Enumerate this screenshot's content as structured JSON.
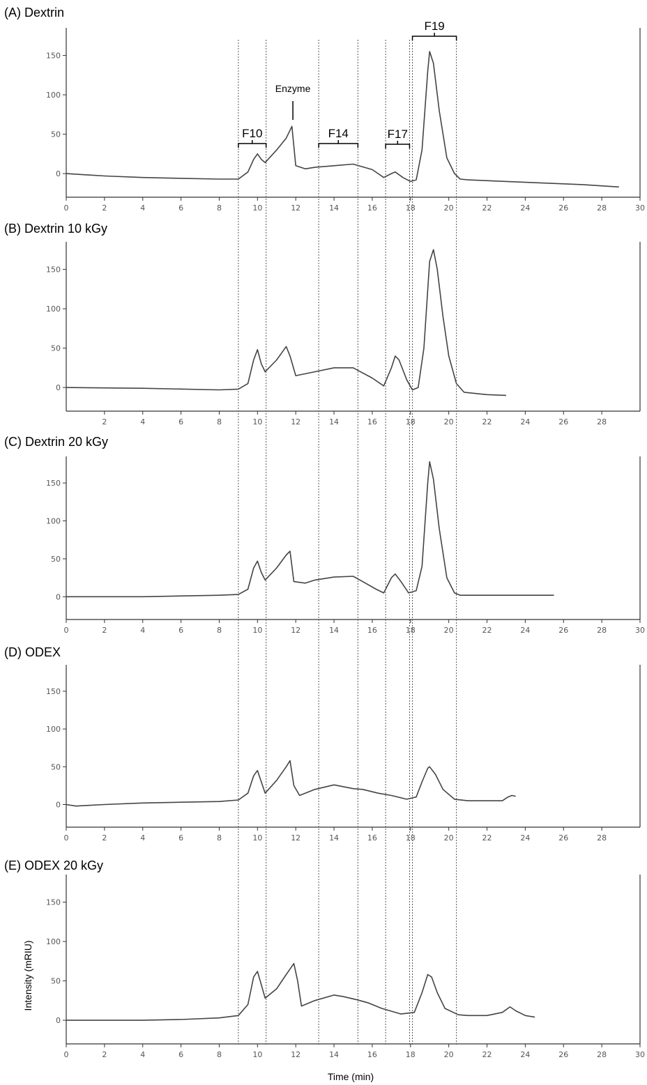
{
  "chart_data": {
    "type": "line",
    "xlabel": "Time (min)",
    "ylabel": "Intensity (mRIU)",
    "xlim": [
      0,
      30
    ],
    "ylim": [
      -30,
      185
    ],
    "y_ticks": [
      0,
      50,
      100,
      150
    ],
    "grid": false,
    "panels": [
      {
        "title": "(A) Dextrin",
        "x_ticks": [
          0,
          2,
          4,
          6,
          8,
          10,
          12,
          14,
          16,
          18,
          20,
          22,
          24,
          26,
          28,
          30
        ],
        "points": [
          [
            0,
            0
          ],
          [
            2,
            -3
          ],
          [
            4,
            -5
          ],
          [
            6,
            -6
          ],
          [
            8,
            -7
          ],
          [
            9,
            -7
          ],
          [
            9.5,
            2
          ],
          [
            9.8,
            18
          ],
          [
            10,
            25
          ],
          [
            10.2,
            18
          ],
          [
            10.4,
            14
          ],
          [
            11,
            30
          ],
          [
            11.5,
            45
          ],
          [
            11.8,
            60
          ],
          [
            12,
            10
          ],
          [
            12.5,
            6
          ],
          [
            13,
            8
          ],
          [
            14,
            10
          ],
          [
            15,
            12
          ],
          [
            16,
            5
          ],
          [
            16.6,
            -5
          ],
          [
            17,
            0
          ],
          [
            17.2,
            2
          ],
          [
            17.6,
            -5
          ],
          [
            18,
            -10
          ],
          [
            18.3,
            -8
          ],
          [
            18.6,
            30
          ],
          [
            18.9,
            130
          ],
          [
            19,
            155
          ],
          [
            19.2,
            140
          ],
          [
            19.5,
            80
          ],
          [
            19.9,
            20
          ],
          [
            20.3,
            0
          ],
          [
            20.6,
            -7
          ],
          [
            21,
            -8
          ],
          [
            23,
            -10
          ],
          [
            25,
            -12
          ],
          [
            27,
            -14
          ],
          [
            28.9,
            -17
          ]
        ]
      },
      {
        "title": "(B) Dextrin 10 kGy",
        "x_ticks": [
          2,
          4,
          6,
          8,
          10,
          12,
          14,
          16,
          18,
          20,
          22,
          24,
          26,
          28
        ],
        "points": [
          [
            0,
            0
          ],
          [
            4,
            -1
          ],
          [
            8,
            -3
          ],
          [
            9,
            -2
          ],
          [
            9.5,
            5
          ],
          [
            9.8,
            35
          ],
          [
            10,
            48
          ],
          [
            10.2,
            30
          ],
          [
            10.4,
            20
          ],
          [
            11,
            35
          ],
          [
            11.5,
            52
          ],
          [
            11.7,
            40
          ],
          [
            12,
            15
          ],
          [
            13,
            20
          ],
          [
            14,
            25
          ],
          [
            15,
            25
          ],
          [
            16,
            12
          ],
          [
            16.6,
            2
          ],
          [
            17,
            25
          ],
          [
            17.2,
            40
          ],
          [
            17.4,
            35
          ],
          [
            17.8,
            10
          ],
          [
            18.1,
            -3
          ],
          [
            18.4,
            0
          ],
          [
            18.7,
            50
          ],
          [
            19,
            160
          ],
          [
            19.2,
            175
          ],
          [
            19.4,
            150
          ],
          [
            19.7,
            90
          ],
          [
            20,
            40
          ],
          [
            20.4,
            5
          ],
          [
            20.8,
            -6
          ],
          [
            22,
            -9
          ],
          [
            23,
            -10
          ]
        ]
      },
      {
        "title": "(C) Dextrin 20 kGy",
        "x_ticks": [
          0,
          2,
          4,
          6,
          8,
          10,
          12,
          14,
          16,
          18,
          20,
          22,
          24,
          26,
          28,
          30
        ],
        "points": [
          [
            0,
            0
          ],
          [
            4,
            0
          ],
          [
            8,
            2
          ],
          [
            9,
            3
          ],
          [
            9.5,
            10
          ],
          [
            9.8,
            38
          ],
          [
            10,
            47
          ],
          [
            10.2,
            32
          ],
          [
            10.4,
            22
          ],
          [
            11,
            38
          ],
          [
            11.5,
            55
          ],
          [
            11.7,
            60
          ],
          [
            11.9,
            20
          ],
          [
            12.5,
            18
          ],
          [
            13,
            22
          ],
          [
            14,
            26
          ],
          [
            15,
            27
          ],
          [
            15.5,
            20
          ],
          [
            16.2,
            10
          ],
          [
            16.6,
            5
          ],
          [
            17,
            25
          ],
          [
            17.2,
            30
          ],
          [
            17.5,
            20
          ],
          [
            17.9,
            5
          ],
          [
            18.3,
            8
          ],
          [
            18.6,
            40
          ],
          [
            18.9,
            150
          ],
          [
            19,
            178
          ],
          [
            19.2,
            155
          ],
          [
            19.5,
            90
          ],
          [
            19.9,
            25
          ],
          [
            20.3,
            5
          ],
          [
            20.6,
            2
          ],
          [
            22,
            2
          ],
          [
            25.5,
            2
          ]
        ]
      },
      {
        "title": "(D) ODEX",
        "x_ticks": [
          0,
          2,
          4,
          6,
          8,
          10,
          12,
          14,
          16,
          18,
          20,
          22,
          24,
          26,
          28
        ],
        "points": [
          [
            0,
            0
          ],
          [
            0.5,
            -2
          ],
          [
            2,
            0
          ],
          [
            4,
            2
          ],
          [
            6,
            3
          ],
          [
            8,
            4
          ],
          [
            9,
            6
          ],
          [
            9.5,
            15
          ],
          [
            9.8,
            38
          ],
          [
            10,
            45
          ],
          [
            10.2,
            30
          ],
          [
            10.4,
            15
          ],
          [
            11,
            32
          ],
          [
            11.5,
            50
          ],
          [
            11.7,
            58
          ],
          [
            11.9,
            25
          ],
          [
            12.2,
            12
          ],
          [
            13,
            20
          ],
          [
            14,
            26
          ],
          [
            15,
            21
          ],
          [
            15.5,
            20
          ],
          [
            16.3,
            15
          ],
          [
            17,
            12
          ],
          [
            17.8,
            7
          ],
          [
            18.3,
            10
          ],
          [
            18.6,
            30
          ],
          [
            18.9,
            48
          ],
          [
            19,
            50
          ],
          [
            19.3,
            40
          ],
          [
            19.7,
            20
          ],
          [
            20.3,
            7
          ],
          [
            21,
            5
          ],
          [
            22,
            5
          ],
          [
            22.8,
            5
          ],
          [
            23.1,
            10
          ],
          [
            23.3,
            12
          ],
          [
            23.5,
            11
          ]
        ]
      },
      {
        "title": "(E) ODEX 20 kGy",
        "x_ticks": [
          0,
          2,
          4,
          6,
          8,
          10,
          12,
          14,
          16,
          18,
          20,
          22,
          24,
          26,
          28,
          30
        ],
        "points": [
          [
            0,
            0
          ],
          [
            2,
            0
          ],
          [
            4,
            0
          ],
          [
            6,
            1
          ],
          [
            8,
            3
          ],
          [
            9,
            6
          ],
          [
            9.5,
            20
          ],
          [
            9.8,
            55
          ],
          [
            10,
            62
          ],
          [
            10.2,
            45
          ],
          [
            10.4,
            28
          ],
          [
            11,
            40
          ],
          [
            11.5,
            58
          ],
          [
            11.9,
            72
          ],
          [
            12.1,
            50
          ],
          [
            12.3,
            18
          ],
          [
            13,
            25
          ],
          [
            14,
            32
          ],
          [
            14.5,
            30
          ],
          [
            15.2,
            26
          ],
          [
            15.8,
            22
          ],
          [
            16.5,
            15
          ],
          [
            17.5,
            8
          ],
          [
            18.2,
            10
          ],
          [
            18.6,
            35
          ],
          [
            18.9,
            58
          ],
          [
            19.1,
            55
          ],
          [
            19.4,
            35
          ],
          [
            19.8,
            15
          ],
          [
            20.5,
            7
          ],
          [
            21,
            6
          ],
          [
            22,
            6
          ],
          [
            22.8,
            10
          ],
          [
            23.2,
            17
          ],
          [
            23.5,
            12
          ],
          [
            24,
            6
          ],
          [
            24.5,
            4
          ]
        ]
      }
    ],
    "fractions": [
      {
        "label": "F10",
        "start": 9.0,
        "end": 10.45
      },
      {
        "label": "F14",
        "start": 13.2,
        "end": 15.25
      },
      {
        "label": "F17",
        "start": 16.7,
        "end": 17.95
      },
      {
        "label": "F19",
        "start": 18.1,
        "end": 20.4
      }
    ],
    "annotations": [
      {
        "label": "Enzyme",
        "x": 11.85
      }
    ]
  }
}
